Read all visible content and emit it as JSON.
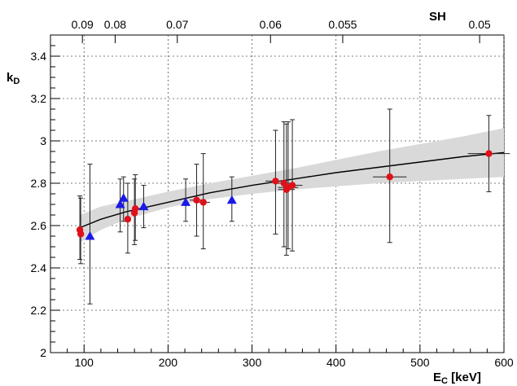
{
  "chart_data": {
    "type": "scatter",
    "xlabel": "E_C [keV]",
    "xlabel_main": "E",
    "xlabel_sub": "C",
    "xlabel_unit": " [keV]",
    "ylabel": "k_D",
    "ylabel_main": "k",
    "ylabel_sub": "D",
    "top_axis_label": "SH",
    "xlim": [
      60,
      600
    ],
    "ylim": [
      2.0,
      3.5
    ],
    "x_ticks": [
      100,
      200,
      300,
      400,
      500,
      600
    ],
    "x_tick_labels": [
      "100",
      "200",
      "300",
      "400",
      "500",
      "600"
    ],
    "y_ticks": [
      2.0,
      2.2,
      2.4,
      2.6,
      2.8,
      3.0,
      3.2,
      3.4
    ],
    "y_tick_labels": [
      "2",
      "2.2",
      "2.4",
      "2.6",
      "2.8",
      "3",
      "3.2",
      "3.4"
    ],
    "top_ticks": [
      {
        "label": "0.09",
        "x": 98
      },
      {
        "label": "0.08",
        "x": 137
      },
      {
        "label": "0.07",
        "x": 211
      },
      {
        "label": "0.06",
        "x": 322
      },
      {
        "label": "0.055",
        "x": 408
      },
      {
        "label": "0.05",
        "x": 571
      }
    ],
    "grid": true,
    "series": [
      {
        "marker": "circle",
        "color": "#e0101a",
        "points": [
          {
            "x": 95,
            "y": 2.58,
            "ylo": 2.44,
            "yhi": 2.74,
            "xerr": 3
          },
          {
            "x": 96,
            "y": 2.56,
            "ylo": 2.42,
            "yhi": 2.73,
            "xerr": 3
          },
          {
            "x": 152,
            "y": 2.63,
            "ylo": 2.47,
            "yhi": 2.8,
            "xerr": 3
          },
          {
            "x": 160,
            "y": 2.66,
            "ylo": 2.51,
            "yhi": 2.82,
            "xerr": 4
          },
          {
            "x": 161,
            "y": 2.68,
            "ylo": 2.53,
            "yhi": 2.84,
            "xerr": 4
          },
          {
            "x": 234,
            "y": 2.72,
            "ylo": 2.55,
            "yhi": 2.89,
            "xerr": 8
          },
          {
            "x": 242,
            "y": 2.71,
            "ylo": 2.49,
            "yhi": 2.94,
            "xerr": 8
          },
          {
            "x": 328,
            "y": 2.81,
            "ylo": 2.56,
            "yhi": 3.05,
            "xerr": 12
          },
          {
            "x": 338,
            "y": 2.8,
            "ylo": 2.5,
            "yhi": 3.09,
            "xerr": 12
          },
          {
            "x": 341,
            "y": 2.77,
            "ylo": 2.46,
            "yhi": 3.08,
            "xerr": 10
          },
          {
            "x": 343,
            "y": 2.78,
            "ylo": 2.49,
            "yhi": 3.09,
            "xerr": 12
          },
          {
            "x": 348,
            "y": 2.79,
            "ylo": 2.48,
            "yhi": 3.1,
            "xerr": 12
          },
          {
            "x": 464,
            "y": 2.83,
            "ylo": 2.52,
            "yhi": 3.15,
            "xerr": 20
          },
          {
            "x": 582,
            "y": 2.94,
            "ylo": 2.76,
            "yhi": 3.12,
            "xerr": 25
          }
        ]
      },
      {
        "marker": "triangle",
        "color": "#1a1ae6",
        "points": [
          {
            "x": 107,
            "y": 2.55,
            "ylo": 2.23,
            "yhi": 2.89
          },
          {
            "x": 143,
            "y": 2.7,
            "ylo": 2.57,
            "yhi": 2.82
          },
          {
            "x": 147,
            "y": 2.73,
            "ylo": 2.62,
            "yhi": 2.83
          },
          {
            "x": 171,
            "y": 2.69,
            "ylo": 2.59,
            "yhi": 2.79
          },
          {
            "x": 221,
            "y": 2.71,
            "ylo": 2.62,
            "yhi": 2.82
          },
          {
            "x": 276,
            "y": 2.72,
            "ylo": 2.62,
            "yhi": 2.83
          }
        ]
      }
    ],
    "fit_curve": {
      "x": [
        95,
        120,
        150,
        200,
        250,
        300,
        350,
        400,
        450,
        500,
        550,
        600
      ],
      "y": [
        2.59,
        2.63,
        2.665,
        2.71,
        2.755,
        2.79,
        2.82,
        2.85,
        2.875,
        2.9,
        2.925,
        2.945
      ],
      "band_lo": [
        2.52,
        2.58,
        2.63,
        2.685,
        2.725,
        2.75,
        2.77,
        2.785,
        2.8,
        2.81,
        2.82,
        2.83
      ],
      "band_hi": [
        2.65,
        2.69,
        2.715,
        2.76,
        2.8,
        2.835,
        2.87,
        2.91,
        2.95,
        2.985,
        3.02,
        3.06
      ]
    },
    "colors": {
      "band": "#d9d9d9",
      "curve": "#000000",
      "grid": "#555555"
    }
  }
}
